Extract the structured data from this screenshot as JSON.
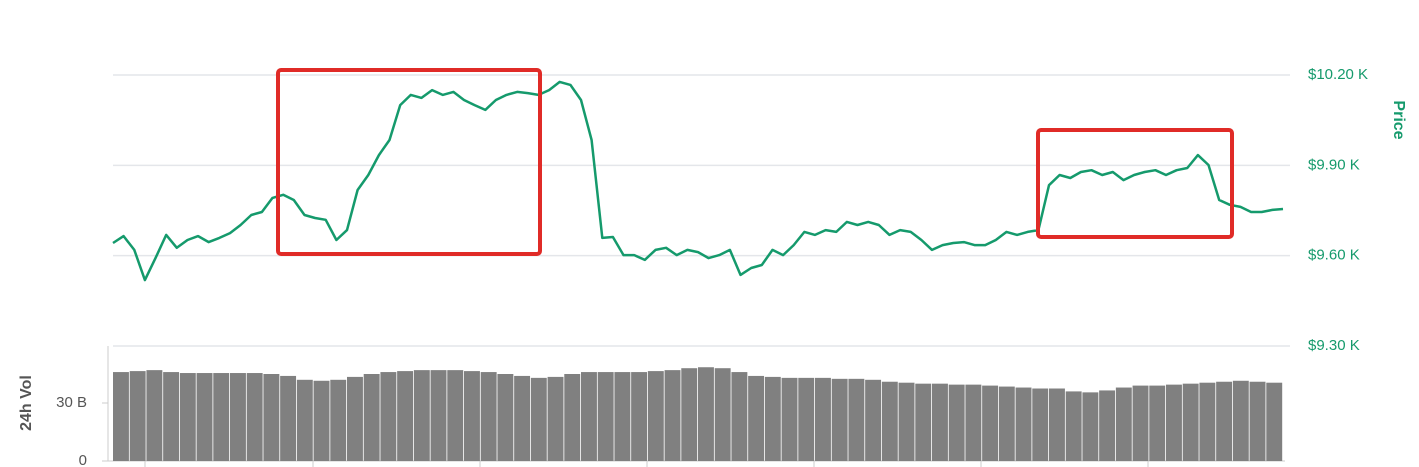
{
  "chart_data": [
    {
      "type": "line",
      "ylabel": "Price",
      "color": "#159a6c",
      "grid": true,
      "ylim": [
        9300,
        10200
      ],
      "yticks": [
        {
          "value": 9300,
          "label": "$9.30 K"
        },
        {
          "value": 9600,
          "label": "$9.60 K"
        },
        {
          "value": 9900,
          "label": "$9.90 K"
        },
        {
          "value": 10200,
          "label": "$10.20 K"
        }
      ],
      "values": [
        9642,
        9665,
        9619,
        9519,
        9592,
        9669,
        9626,
        9652,
        9665,
        9645,
        9659,
        9675,
        9702,
        9735,
        9745,
        9792,
        9802,
        9785,
        9735,
        9725,
        9719,
        9652,
        9685,
        9818,
        9868,
        9934,
        9984,
        10100,
        10134,
        10124,
        10150,
        10134,
        10144,
        10117,
        10100,
        10084,
        10117,
        10134,
        10144,
        10140,
        10134,
        10150,
        10177,
        10167,
        10117,
        9984,
        9659,
        9662,
        9602,
        9602,
        9586,
        9619,
        9626,
        9602,
        9619,
        9612,
        9592,
        9602,
        9619,
        9536,
        9559,
        9569,
        9619,
        9602,
        9635,
        9679,
        9669,
        9685,
        9679,
        9712,
        9702,
        9712,
        9702,
        9669,
        9685,
        9679,
        9652,
        9619,
        9635,
        9642,
        9645,
        9635,
        9635,
        9652,
        9679,
        9669,
        9679,
        9685,
        9834,
        9868,
        9858,
        9878,
        9884,
        9868,
        9878,
        9851,
        9868,
        9878,
        9884,
        9868,
        9884,
        9891,
        9934,
        9901,
        9785,
        9769,
        9762,
        9745,
        9745,
        9752,
        9755
      ]
    },
    {
      "type": "bar",
      "ylabel": "24h Vol",
      "color": "#808080",
      "ylim": [
        0,
        60
      ],
      "yticks": [
        0,
        {
          "value": 30,
          "label": "30 B"
        }
      ],
      "values": [
        46,
        46.5,
        47,
        46,
        45.5,
        45.5,
        45.5,
        45.5,
        45.5,
        45,
        44,
        42,
        41.5,
        42,
        43.5,
        45,
        46,
        46.5,
        47,
        47,
        47,
        46.5,
        46,
        45,
        44,
        43,
        43.5,
        45,
        46,
        46,
        46,
        46,
        46.5,
        47,
        48,
        48.5,
        48,
        46,
        44,
        43.5,
        43,
        43,
        43,
        42.5,
        42.5,
        42,
        41,
        40.5,
        40,
        40,
        39.5,
        39.5,
        39,
        38.5,
        38,
        37.5,
        37.5,
        36,
        35.5,
        36.5,
        38,
        39,
        39,
        39.5,
        40,
        40.5,
        41,
        41.5,
        41,
        40.5
      ]
    }
  ]
}
